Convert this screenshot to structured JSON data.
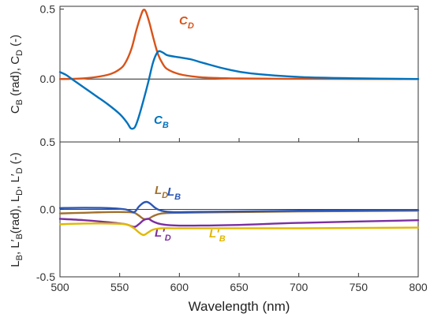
{
  "chart_data": [
    {
      "type": "line",
      "panel": "top",
      "ylabel": "C_B (rad), C_D (-)",
      "ylim": [
        -0.45,
        0.52
      ],
      "yticks": [
        0.5,
        0.0
      ],
      "ytick_labels": [
        "0.5",
        "0.0"
      ],
      "grid": false,
      "series": [
        {
          "name": "C_D",
          "label": "C",
          "label_sub": "D",
          "color": "#D95319",
          "x": [
            500,
            520,
            540,
            550,
            555,
            560,
            564,
            568,
            570,
            572,
            575,
            578,
            582,
            586,
            590,
            600,
            615,
            630,
            650,
            680,
            720,
            800
          ],
          "y": [
            0.0,
            0.005,
            0.03,
            0.07,
            0.12,
            0.22,
            0.35,
            0.46,
            0.495,
            0.48,
            0.4,
            0.3,
            0.18,
            0.11,
            0.07,
            0.035,
            0.015,
            0.008,
            0.004,
            0.002,
            0.001,
            0.0
          ]
        },
        {
          "name": "C_B",
          "label": "C",
          "label_sub": "B",
          "color": "#0072BD",
          "x": [
            500,
            505,
            510,
            520,
            530,
            540,
            550,
            556,
            559,
            561,
            563,
            566,
            570,
            574,
            578,
            582,
            586,
            590,
            600,
            610,
            620,
            640,
            660,
            700,
            750,
            800
          ],
          "y": [
            0.05,
            0.03,
            0.0,
            -0.06,
            -0.12,
            -0.18,
            -0.25,
            -0.31,
            -0.35,
            -0.355,
            -0.34,
            -0.27,
            -0.15,
            -0.02,
            0.12,
            0.195,
            0.19,
            0.17,
            0.155,
            0.14,
            0.115,
            0.07,
            0.04,
            0.015,
            0.005,
            0.0
          ]
        }
      ]
    },
    {
      "type": "line",
      "panel": "bottom",
      "xlabel": "Wavelength (nm)",
      "ylabel": "L_B, L′_B(rad), L_D, L′_D (-)",
      "xlim": [
        500,
        800
      ],
      "xticks": [
        500,
        550,
        600,
        650,
        700,
        750,
        800
      ],
      "xtick_labels": [
        "500",
        "550",
        "600",
        "650",
        "700",
        "750",
        "800"
      ],
      "ylim": [
        -0.5,
        0.5
      ],
      "yticks": [
        0.5,
        0.0,
        -0.5
      ],
      "ytick_labels": [
        "0.5",
        "0.0",
        "-0.5"
      ],
      "grid": false,
      "series": [
        {
          "name": "L_D",
          "label": "L",
          "label_sub": "D",
          "prime": false,
          "color": "#A0712F",
          "x": [
            500,
            520,
            540,
            555,
            562,
            566,
            570,
            574,
            578,
            585,
            600,
            650,
            700,
            800
          ],
          "y": [
            -0.03,
            -0.025,
            -0.02,
            -0.02,
            -0.025,
            -0.045,
            -0.07,
            -0.07,
            -0.05,
            -0.03,
            -0.025,
            -0.02,
            -0.015,
            -0.01
          ]
        },
        {
          "name": "L_B",
          "label": "L",
          "label_sub": "B",
          "prime": false,
          "color": "#2B56B5",
          "x": [
            500,
            520,
            540,
            555,
            562,
            566,
            570,
            573,
            576,
            580,
            585,
            595,
            620,
            700,
            800
          ],
          "y": [
            0.01,
            0.012,
            0.01,
            0.0,
            -0.02,
            0.02,
            0.05,
            0.055,
            0.04,
            0.01,
            -0.01,
            -0.02,
            -0.018,
            -0.01,
            -0.005
          ]
        },
        {
          "name": "L′_D",
          "label": "L",
          "label_sub": "D",
          "prime": true,
          "color": "#7B2FA0",
          "x": [
            500,
            520,
            540,
            555,
            562,
            566,
            570,
            574,
            578,
            585,
            600,
            650,
            700,
            800
          ],
          "y": [
            -0.07,
            -0.08,
            -0.095,
            -0.11,
            -0.13,
            -0.11,
            -0.08,
            -0.07,
            -0.09,
            -0.11,
            -0.12,
            -0.115,
            -0.1,
            -0.08
          ]
        },
        {
          "name": "L′_B",
          "label": "L",
          "label_sub": "B",
          "prime": true,
          "color": "#E0B800",
          "x": [
            500,
            520,
            540,
            555,
            562,
            566,
            570,
            574,
            578,
            585,
            600,
            650,
            700,
            800
          ],
          "y": [
            -0.11,
            -0.105,
            -0.105,
            -0.11,
            -0.14,
            -0.17,
            -0.19,
            -0.17,
            -0.15,
            -0.14,
            -0.14,
            -0.14,
            -0.14,
            -0.135
          ]
        }
      ]
    }
  ]
}
